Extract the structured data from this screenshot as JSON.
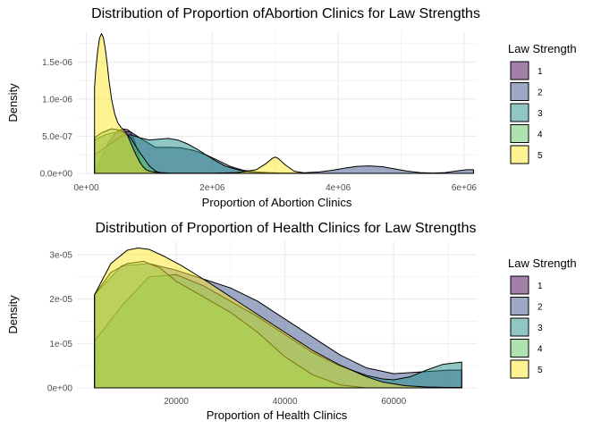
{
  "chart_data": [
    {
      "type": "area",
      "title": "Distribution of Proportion ofAbortion Clinics for Law Strengths",
      "xlabel": "Proportion of Abortion Clinics",
      "ylabel": "Density",
      "xlim": [
        -150000,
        6200000
      ],
      "ylim": [
        0,
        1.9e-06
      ],
      "xticks": [
        0,
        2000000,
        4000000,
        6000000
      ],
      "xtick_labels": [
        "0e+00",
        "2e+06",
        "4e+06",
        "6e+06"
      ],
      "yticks": [
        0,
        5e-07,
        1e-06,
        1.5e-06
      ],
      "ytick_labels": [
        "0.0e+00",
        "5.0e-07",
        "1.0e-06",
        "1.5e-06"
      ],
      "grid": true,
      "legend": {
        "title": "Law Strength",
        "position": "right"
      },
      "series": [
        {
          "name": "1",
          "color": "#440154",
          "x": [
            130000,
            250000,
            350000,
            450000,
            500000,
            550000,
            600000,
            650000,
            700000,
            750000,
            800000,
            850000,
            900000,
            1000000
          ],
          "y": [
            0,
            2.4e-07,
            4.2e-07,
            5.3e-07,
            5.7e-07,
            5.9e-07,
            5.95e-07,
            5.9e-07,
            5.6e-07,
            4.8e-07,
            3.4e-07,
            1.8e-07,
            6e-08,
            0
          ]
        },
        {
          "name": "2",
          "color": "#3B528B",
          "x": [
            130000,
            300000,
            500000,
            700000,
            900000,
            1100000,
            1300000,
            1500000,
            1700000,
            1900000,
            2100000,
            2300000,
            2500000,
            2700000,
            2900000,
            3100000,
            3300000,
            3500000,
            3700000,
            3900000,
            4100000,
            4300000,
            4500000,
            4700000,
            4900000,
            5100000,
            5300000,
            5500000,
            5700000,
            5900000,
            6050000,
            6150000
          ],
          "y": [
            4.5e-07,
            5.2e-07,
            5.6e-07,
            5.6e-07,
            4.5e-07,
            3.5e-07,
            3.5e-07,
            3.45e-07,
            3.1e-07,
            2.5e-07,
            1.7e-07,
            9e-08,
            4e-08,
            2e-08,
            1e-08,
            5e-09,
            5e-09,
            1e-08,
            2e-08,
            4e-08,
            7e-08,
            9.5e-08,
            1e-07,
            9e-08,
            6e-08,
            3e-08,
            1e-08,
            5e-09,
            1e-08,
            3.5e-08,
            5e-08,
            5e-08
          ]
        },
        {
          "name": "3",
          "color": "#21908C",
          "x": [
            130000,
            250000,
            400000,
            550000,
            700000,
            850000,
            1000000,
            1150000,
            1300000,
            1450000,
            1600000,
            1750000,
            1900000,
            2050000,
            2200000,
            2400000,
            2600000,
            2800000,
            3000000,
            3200000
          ],
          "y": [
            2.5e-07,
            3.2e-07,
            4.1e-07,
            5e-07,
            5.2e-07,
            4.8e-07,
            4.5e-07,
            4.6e-07,
            4.7e-07,
            4.5e-07,
            4e-07,
            3.3e-07,
            2.5e-07,
            1.7e-07,
            1e-07,
            5e-08,
            2e-08,
            8e-09,
            3e-09,
            0
          ]
        },
        {
          "name": "4",
          "color": "#5DC863",
          "x": [
            130000,
            250000,
            400000,
            550000,
            700000,
            850000,
            1000000,
            1100000,
            1200000
          ],
          "y": [
            4.8e-07,
            5.5e-07,
            6e-07,
            5.8e-07,
            4.8e-07,
            2.8e-07,
            1e-07,
            3e-08,
            0
          ]
        },
        {
          "name": "5",
          "color": "#FDE725",
          "x": [
            130000,
            150000,
            180000,
            210000,
            240000,
            270000,
            300000,
            330000,
            360000,
            400000,
            450000,
            500000,
            550000,
            600000,
            650000,
            700000,
            750000,
            800000,
            850000,
            900000,
            950000,
            1000000,
            1100000,
            1300000,
            1600000,
            2000000,
            2400000,
            2700000,
            2850000,
            2950000,
            3000000,
            3050000,
            3150000,
            3300000,
            3500000
          ],
          "y": [
            1.15e-06,
            1.4e-06,
            1.65e-06,
            1.82e-06,
            1.88e-06,
            1.83e-06,
            1.68e-06,
            1.48e-06,
            1.25e-06,
            1e-06,
            8e-07,
            6.8e-07,
            6.2e-07,
            5.8e-07,
            5.2e-07,
            4.2e-07,
            3.2e-07,
            2.3e-07,
            1.5e-07,
            9e-08,
            5e-08,
            3e-08,
            1.5e-08,
            5e-09,
            3e-09,
            3e-09,
            1e-08,
            5e-08,
            1.3e-07,
            2e-07,
            2.2e-07,
            2e-07,
            1.2e-07,
            3e-08,
            0
          ]
        }
      ]
    },
    {
      "type": "area",
      "title": "Distribution of Proportion of Health Clinics for Law Strengths",
      "xlabel": "Proportion of Health Clinics",
      "ylabel": "Density",
      "xlim": [
        1750,
        75250
      ],
      "ylim": [
        0,
        3.3e-05
      ],
      "xticks": [
        20000,
        40000,
        60000
      ],
      "xtick_labels": [
        "20000",
        "40000",
        "60000"
      ],
      "yticks": [
        0,
        1e-05,
        2e-05,
        3e-05
      ],
      "ytick_labels": [
        "0e+00",
        "1e-05",
        "2e-05",
        "3e-05"
      ],
      "grid": true,
      "legend": {
        "title": "Law Strength",
        "position": "right"
      },
      "series": [
        {
          "name": "1",
          "color": "#440154",
          "x": [
            5000,
            5000
          ],
          "y": [
            0,
            0
          ]
        },
        {
          "name": "2",
          "color": "#3B528B",
          "x": [
            5000,
            10000,
            15000,
            20000,
            25000,
            30000,
            35000,
            40000,
            45000,
            50000,
            55000,
            60000,
            65000,
            70000,
            72500
          ],
          "y": [
            2.1e-05,
            2.75e-05,
            2.8e-05,
            2.65e-05,
            2.45e-05,
            2.25e-05,
            1.95e-05,
            1.55e-05,
            1.15e-05,
            7.5e-06,
            4.5e-06,
            3.2e-06,
            3.6e-06,
            4e-06,
            4e-06
          ]
        },
        {
          "name": "3",
          "color": "#21908C",
          "x": [
            5000,
            10000,
            15000,
            20000,
            25000,
            30000,
            35000,
            40000,
            45000,
            50000,
            55000,
            58000,
            60000,
            63000,
            66000,
            69000,
            72500
          ],
          "y": [
            1.05e-05,
            1.85e-05,
            2.5e-05,
            2.55e-05,
            2.3e-05,
            1.95e-05,
            1.6e-05,
            1.2e-05,
            8e-06,
            5e-06,
            2.8e-06,
            2e-06,
            1.8e-06,
            2.5e-06,
            4e-06,
            5.3e-06,
            5.8e-06
          ]
        },
        {
          "name": "4",
          "color": "#5DC863",
          "x": [
            5000,
            8000,
            11000,
            14000,
            17000,
            20000,
            25000,
            30000,
            35000,
            40000,
            45000,
            50000,
            55000
          ],
          "y": [
            2.1e-05,
            2.6e-05,
            2.8e-05,
            2.85e-05,
            2.7e-05,
            2.4e-05,
            2.05e-05,
            1.7e-05,
            1.25e-05,
            7e-06,
            3e-06,
            7e-07,
            0
          ]
        },
        {
          "name": "5",
          "color": "#FDE725",
          "x": [
            5000,
            8000,
            11000,
            13000,
            15000,
            18000,
            21000,
            25000,
            30000,
            35000,
            40000,
            45000,
            50000,
            55000,
            58000,
            62000,
            66000,
            70000,
            72500
          ],
          "y": [
            2.1e-05,
            2.8e-05,
            3.1e-05,
            3.15e-05,
            3.12e-05,
            2.95e-05,
            2.75e-05,
            2.45e-05,
            2.05e-05,
            1.65e-05,
            1.25e-05,
            8.5e-06,
            5.2e-06,
            2.5e-06,
            1.3e-06,
            5e-07,
            2e-07,
            1e-07,
            1e-07
          ]
        }
      ]
    }
  ]
}
